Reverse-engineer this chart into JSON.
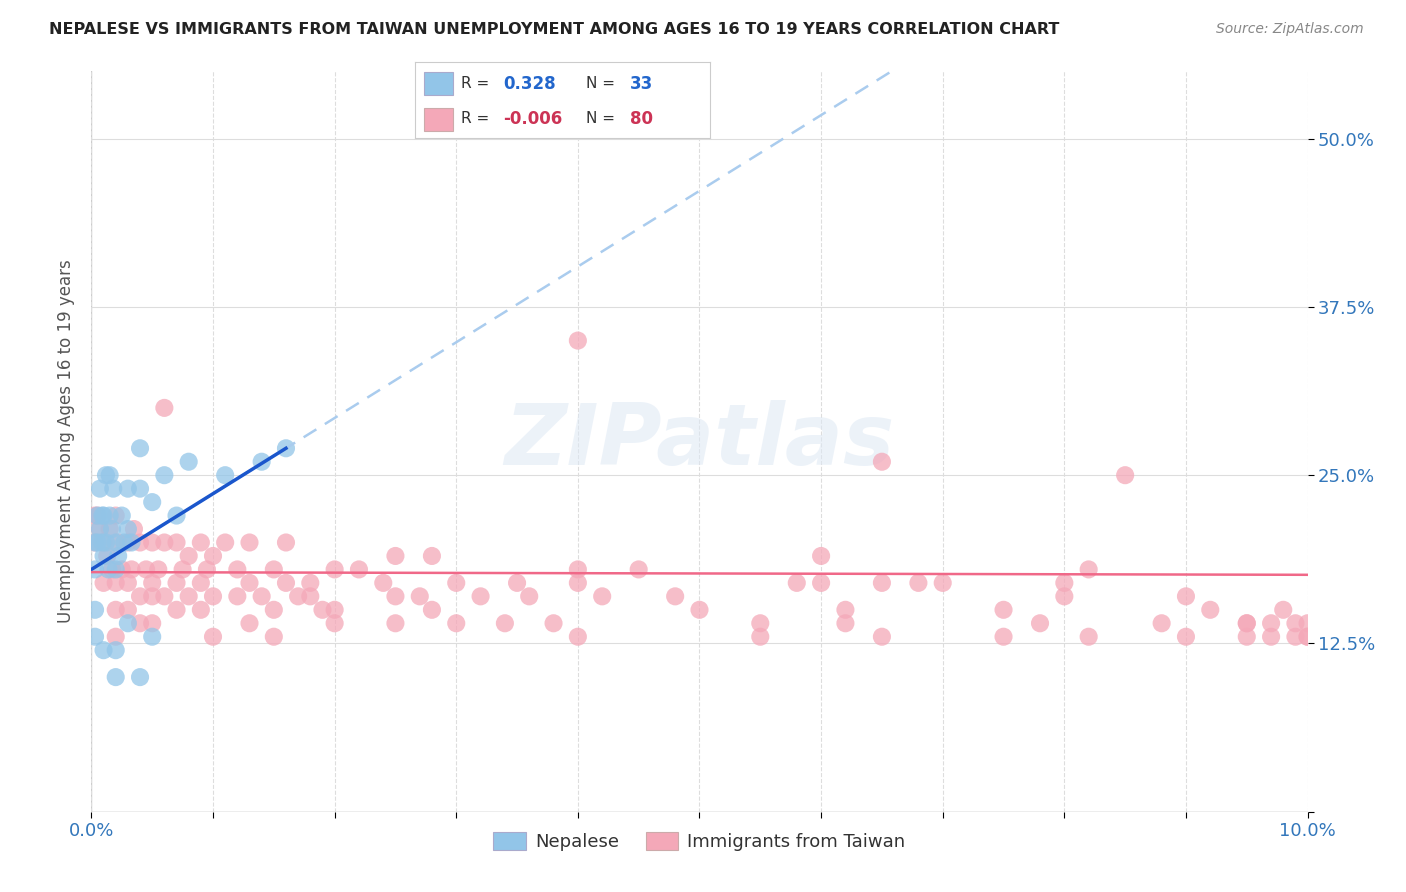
{
  "title": "NEPALESE VS IMMIGRANTS FROM TAIWAN UNEMPLOYMENT AMONG AGES 16 TO 19 YEARS CORRELATION CHART",
  "source": "Source: ZipAtlas.com",
  "ylabel": "Unemployment Among Ages 16 to 19 years",
  "xlim": [
    0.0,
    0.1
  ],
  "ylim": [
    0.0,
    0.55
  ],
  "x_ticks": [
    0.0,
    0.01,
    0.02,
    0.03,
    0.04,
    0.05,
    0.06,
    0.07,
    0.08,
    0.09,
    0.1
  ],
  "y_ticks": [
    0.0,
    0.125,
    0.25,
    0.375,
    0.5
  ],
  "y_tick_labels_right": [
    "",
    "12.5%",
    "25.0%",
    "37.5%",
    "50.0%"
  ],
  "R_nepalese": 0.328,
  "N_nepalese": 33,
  "R_taiwan": -0.006,
  "N_taiwan": 80,
  "nepalese_color": "#92c5e8",
  "taiwan_color": "#f4a8b8",
  "nepalese_line_color": "#1a56cc",
  "taiwan_line_color": "#f06888",
  "dashed_line_color": "#aaccee",
  "background_color": "#ffffff",
  "watermark": "ZIPatlas",
  "grid_color": "#dddddd",
  "nepalese_x": [
    0.0003,
    0.0003,
    0.0005,
    0.0007,
    0.0007,
    0.0009,
    0.0009,
    0.001,
    0.001,
    0.0012,
    0.0012,
    0.0014,
    0.0015,
    0.0015,
    0.0017,
    0.0018,
    0.002,
    0.002,
    0.0022,
    0.0025,
    0.0027,
    0.003,
    0.003,
    0.0033,
    0.004,
    0.004,
    0.005,
    0.006,
    0.007,
    0.008,
    0.011,
    0.014,
    0.016
  ],
  "nepalese_y": [
    0.18,
    0.2,
    0.2,
    0.21,
    0.24,
    0.2,
    0.22,
    0.19,
    0.22,
    0.2,
    0.25,
    0.18,
    0.22,
    0.25,
    0.21,
    0.24,
    0.18,
    0.2,
    0.19,
    0.22,
    0.2,
    0.21,
    0.24,
    0.2,
    0.24,
    0.27,
    0.23,
    0.25,
    0.22,
    0.26,
    0.25,
    0.26,
    0.27
  ],
  "taiwan_x": [
    0.0003,
    0.0005,
    0.0007,
    0.001,
    0.001,
    0.0013,
    0.0015,
    0.0017,
    0.002,
    0.002,
    0.0022,
    0.0025,
    0.003,
    0.003,
    0.0033,
    0.0035,
    0.004,
    0.004,
    0.0045,
    0.005,
    0.005,
    0.0055,
    0.006,
    0.006,
    0.007,
    0.007,
    0.0075,
    0.008,
    0.008,
    0.009,
    0.009,
    0.0095,
    0.01,
    0.011,
    0.012,
    0.013,
    0.014,
    0.015,
    0.016,
    0.017,
    0.018,
    0.019,
    0.02,
    0.022,
    0.024,
    0.025,
    0.027,
    0.028,
    0.03,
    0.032,
    0.034,
    0.036,
    0.038,
    0.04,
    0.042,
    0.045,
    0.048,
    0.05,
    0.055,
    0.058,
    0.06,
    0.062,
    0.065,
    0.068,
    0.07,
    0.075,
    0.078,
    0.08,
    0.082,
    0.085,
    0.088,
    0.09,
    0.092,
    0.095,
    0.097,
    0.098,
    0.099,
    0.1,
    0.1,
    0.04
  ],
  "taiwan_y": [
    0.2,
    0.22,
    0.21,
    0.2,
    0.17,
    0.19,
    0.21,
    0.18,
    0.22,
    0.17,
    0.2,
    0.18,
    0.2,
    0.17,
    0.18,
    0.21,
    0.2,
    0.16,
    0.18,
    0.17,
    0.2,
    0.18,
    0.2,
    0.3,
    0.17,
    0.2,
    0.18,
    0.16,
    0.19,
    0.17,
    0.2,
    0.18,
    0.19,
    0.2,
    0.18,
    0.2,
    0.16,
    0.18,
    0.2,
    0.16,
    0.17,
    0.15,
    0.18,
    0.18,
    0.17,
    0.19,
    0.16,
    0.19,
    0.17,
    0.16,
    0.14,
    0.16,
    0.14,
    0.17,
    0.16,
    0.18,
    0.16,
    0.15,
    0.14,
    0.17,
    0.17,
    0.15,
    0.17,
    0.17,
    0.17,
    0.15,
    0.14,
    0.16,
    0.18,
    0.25,
    0.14,
    0.16,
    0.15,
    0.14,
    0.13,
    0.15,
    0.13,
    0.14,
    0.13,
    0.35
  ],
  "taiwan_extra_x": [
    0.0003,
    0.002,
    0.003,
    0.004,
    0.005,
    0.006,
    0.007,
    0.009,
    0.01,
    0.012,
    0.013,
    0.015,
    0.016,
    0.018,
    0.02,
    0.025,
    0.028,
    0.035,
    0.04,
    0.06,
    0.065,
    0.08,
    0.095,
    0.099
  ],
  "taiwan_extra_y": [
    0.22,
    0.15,
    0.15,
    0.14,
    0.16,
    0.16,
    0.15,
    0.15,
    0.16,
    0.16,
    0.17,
    0.15,
    0.17,
    0.16,
    0.15,
    0.16,
    0.15,
    0.17,
    0.18,
    0.19,
    0.26,
    0.17,
    0.14,
    0.14
  ],
  "nepalese_extra_x": [
    0.0003,
    0.0003,
    0.0005,
    0.001,
    0.002,
    0.002,
    0.003,
    0.004,
    0.005
  ],
  "nepalese_extra_y": [
    0.15,
    0.13,
    0.22,
    0.12,
    0.12,
    0.1,
    0.14,
    0.1,
    0.13
  ],
  "taiwan_low_x": [
    0.002,
    0.005,
    0.01,
    0.013,
    0.015,
    0.02,
    0.025,
    0.03,
    0.04,
    0.055,
    0.062,
    0.065,
    0.075,
    0.082,
    0.09,
    0.095,
    0.097,
    0.1
  ],
  "taiwan_low_y": [
    0.13,
    0.14,
    0.13,
    0.14,
    0.13,
    0.14,
    0.14,
    0.14,
    0.13,
    0.13,
    0.14,
    0.13,
    0.13,
    0.13,
    0.13,
    0.13,
    0.14,
    0.13
  ]
}
